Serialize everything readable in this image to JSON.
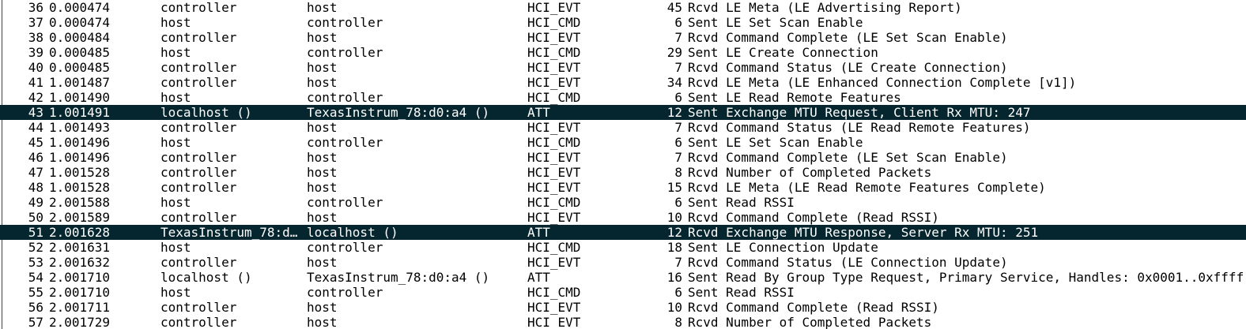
{
  "colors": {
    "background": "#ffffff",
    "text": "#000000",
    "selected_bg": "#06262f",
    "selected_fg": "#ffffff",
    "panel_border": "#444444"
  },
  "packet_list": {
    "selected_packet_numbers": [
      43,
      51
    ],
    "rows": [
      {
        "no": 36,
        "time": "0.000474",
        "src": "controller",
        "dst": "host",
        "proto": "HCI_EVT",
        "len": 45,
        "info": "Rcvd LE Meta (LE Advertising Report)",
        "selected": false
      },
      {
        "no": 37,
        "time": "0.000474",
        "src": "host",
        "dst": "controller",
        "proto": "HCI_CMD",
        "len": 6,
        "info": "Sent LE Set Scan Enable",
        "selected": false
      },
      {
        "no": 38,
        "time": "0.000484",
        "src": "controller",
        "dst": "host",
        "proto": "HCI_EVT",
        "len": 7,
        "info": "Rcvd Command Complete (LE Set Scan Enable)",
        "selected": false
      },
      {
        "no": 39,
        "time": "0.000485",
        "src": "host",
        "dst": "controller",
        "proto": "HCI_CMD",
        "len": 29,
        "info": "Sent LE Create Connection",
        "selected": false
      },
      {
        "no": 40,
        "time": "0.000485",
        "src": "controller",
        "dst": "host",
        "proto": "HCI_EVT",
        "len": 7,
        "info": "Rcvd Command Status (LE Create Connection)",
        "selected": false
      },
      {
        "no": 41,
        "time": "1.001487",
        "src": "controller",
        "dst": "host",
        "proto": "HCI_EVT",
        "len": 34,
        "info": "Rcvd LE Meta (LE Enhanced Connection Complete [v1])",
        "selected": false
      },
      {
        "no": 42,
        "time": "1.001490",
        "src": "host",
        "dst": "controller",
        "proto": "HCI_CMD",
        "len": 6,
        "info": "Sent LE Read Remote Features",
        "selected": false
      },
      {
        "no": 43,
        "time": "1.001491",
        "src": "localhost ()",
        "dst": "TexasInstrum_78:d0:a4 ()",
        "proto": "ATT",
        "len": 12,
        "info": "Sent Exchange MTU Request, Client Rx MTU: 247",
        "selected": true
      },
      {
        "no": 44,
        "time": "1.001493",
        "src": "controller",
        "dst": "host",
        "proto": "HCI_EVT",
        "len": 7,
        "info": "Rcvd Command Status (LE Read Remote Features)",
        "selected": false
      },
      {
        "no": 45,
        "time": "1.001496",
        "src": "host",
        "dst": "controller",
        "proto": "HCI_CMD",
        "len": 6,
        "info": "Sent LE Set Scan Enable",
        "selected": false
      },
      {
        "no": 46,
        "time": "1.001496",
        "src": "controller",
        "dst": "host",
        "proto": "HCI_EVT",
        "len": 7,
        "info": "Rcvd Command Complete (LE Set Scan Enable)",
        "selected": false
      },
      {
        "no": 47,
        "time": "1.001528",
        "src": "controller",
        "dst": "host",
        "proto": "HCI_EVT",
        "len": 8,
        "info": "Rcvd Number of Completed Packets",
        "selected": false
      },
      {
        "no": 48,
        "time": "1.001528",
        "src": "controller",
        "dst": "host",
        "proto": "HCI_EVT",
        "len": 15,
        "info": "Rcvd LE Meta (LE Read Remote Features Complete)",
        "selected": false
      },
      {
        "no": 49,
        "time": "2.001588",
        "src": "host",
        "dst": "controller",
        "proto": "HCI_CMD",
        "len": 6,
        "info": "Sent Read RSSI",
        "selected": false
      },
      {
        "no": 50,
        "time": "2.001589",
        "src": "controller",
        "dst": "host",
        "proto": "HCI_EVT",
        "len": 10,
        "info": "Rcvd Command Complete (Read RSSI)",
        "selected": false
      },
      {
        "no": 51,
        "time": "2.001628",
        "src": "TexasInstrum_78:d…",
        "dst": "localhost ()",
        "proto": "ATT",
        "len": 12,
        "info": "Rcvd Exchange MTU Response, Server Rx MTU: 251",
        "selected": true
      },
      {
        "no": 52,
        "time": "2.001631",
        "src": "host",
        "dst": "controller",
        "proto": "HCI_CMD",
        "len": 18,
        "info": "Sent LE Connection Update",
        "selected": false
      },
      {
        "no": 53,
        "time": "2.001632",
        "src": "controller",
        "dst": "host",
        "proto": "HCI_EVT",
        "len": 7,
        "info": "Rcvd Command Status (LE Connection Update)",
        "selected": false
      },
      {
        "no": 54,
        "time": "2.001710",
        "src": "localhost ()",
        "dst": "TexasInstrum_78:d0:a4 ()",
        "proto": "ATT",
        "len": 16,
        "info": "Sent Read By Group Type Request, Primary Service, Handles: 0x0001..0xffff",
        "selected": false
      },
      {
        "no": 55,
        "time": "2.001710",
        "src": "host",
        "dst": "controller",
        "proto": "HCI_CMD",
        "len": 6,
        "info": "Sent Read RSSI",
        "selected": false
      },
      {
        "no": 56,
        "time": "2.001711",
        "src": "controller",
        "dst": "host",
        "proto": "HCI_EVT",
        "len": 10,
        "info": "Rcvd Command Complete (Read RSSI)",
        "selected": false
      },
      {
        "no": 57,
        "time": "2.001729",
        "src": "controller",
        "dst": "host",
        "proto": "HCI_EVT",
        "len": 8,
        "info": "Rcvd Number of Completed Packets",
        "selected": false
      }
    ]
  }
}
